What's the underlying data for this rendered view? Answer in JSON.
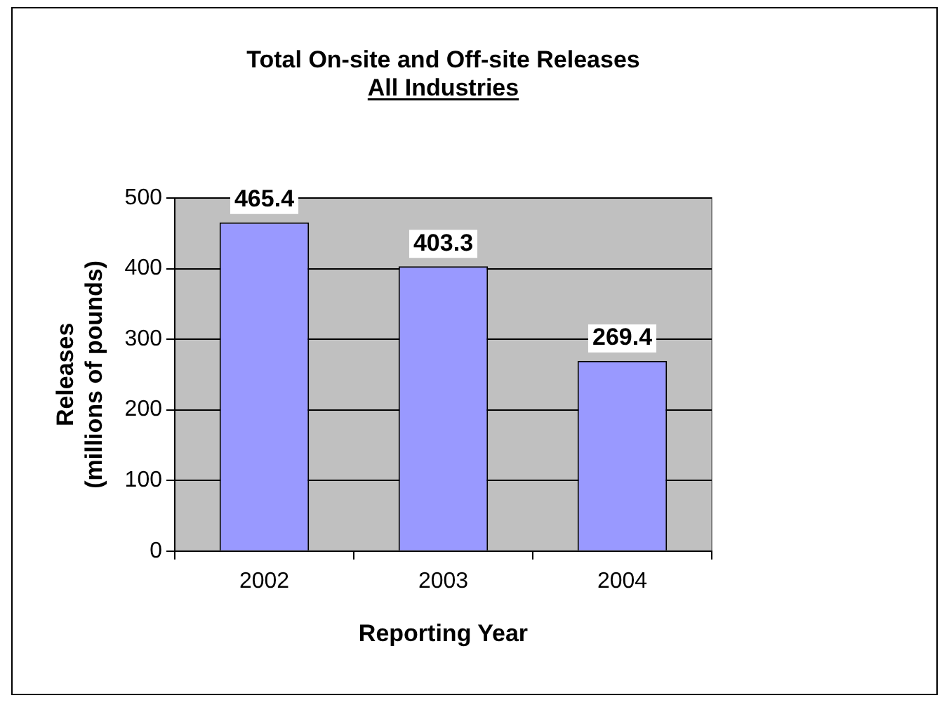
{
  "chart_data": {
    "type": "bar",
    "title": "Total On-site and Off-site Releases",
    "subtitle": "All Industries",
    "xlabel": "Reporting Year",
    "ylabel": "Releases\n(millions of pounds)",
    "categories": [
      "2002",
      "2003",
      "2004"
    ],
    "values": [
      465.4,
      403.3,
      269.4
    ],
    "color": "#9999ff",
    "ylim": [
      0,
      500
    ],
    "yticks": [
      0,
      100,
      200,
      300,
      400,
      500
    ],
    "grid": "y",
    "data_labels": true,
    "legend": false
  }
}
